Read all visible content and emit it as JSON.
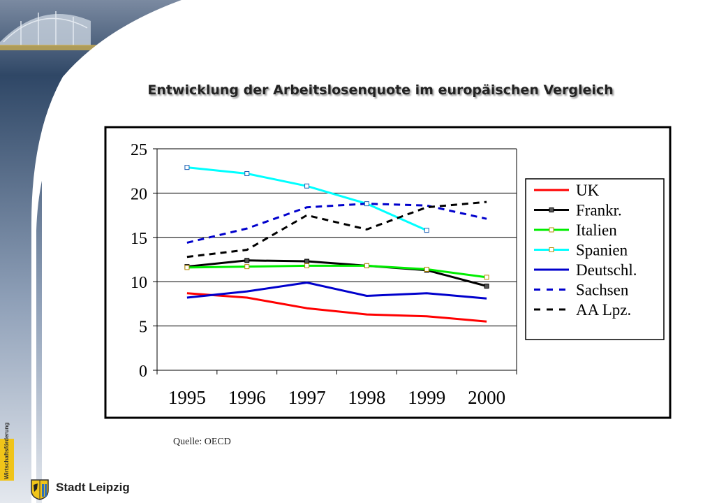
{
  "title": "Entwicklung der Arbeitslosenquote im europäischen Vergleich",
  "source_note": "Quelle: OECD",
  "branding": {
    "badge_text": "Wirtschaftsförderung",
    "city_name": "Stadt Leipzig"
  },
  "chart_data": {
    "type": "line",
    "x": [
      "1995",
      "1996",
      "1997",
      "1998",
      "1999",
      "2000"
    ],
    "ylim": [
      0,
      25
    ],
    "y_ticks": [
      "0",
      "5",
      "10",
      "15",
      "20",
      "25"
    ],
    "grid": true,
    "legend_position": "right",
    "series": [
      {
        "name": "UK",
        "values": [
          8.7,
          8.2,
          7.0,
          6.3,
          6.1,
          5.5
        ],
        "color": "#ff0000",
        "dash": "solid",
        "marker": "none"
      },
      {
        "name": "Frankr.",
        "values": [
          11.7,
          12.4,
          12.3,
          11.8,
          11.3,
          9.5
        ],
        "color": "#000000",
        "dash": "solid",
        "marker": "square"
      },
      {
        "name": "Italien",
        "values": [
          11.6,
          11.7,
          11.8,
          11.8,
          11.4,
          10.5
        ],
        "color": "#00ee00",
        "dash": "solid",
        "marker": "square"
      },
      {
        "name": "Spanien",
        "values": [
          22.9,
          22.2,
          20.8,
          18.8,
          15.8,
          null
        ],
        "color": "#00ffff",
        "dash": "solid",
        "marker": "square"
      },
      {
        "name": "Deutschl.",
        "values": [
          8.2,
          8.9,
          9.9,
          8.4,
          8.7,
          8.1
        ],
        "color": "#0000cc",
        "dash": "solid",
        "marker": "none"
      },
      {
        "name": "Sachsen",
        "values": [
          14.4,
          16.0,
          18.4,
          18.8,
          18.6,
          17.1
        ],
        "color": "#0000cc",
        "dash": "dashed",
        "marker": "none"
      },
      {
        "name": "AA Lpz.",
        "values": [
          12.8,
          13.6,
          17.5,
          15.9,
          18.4,
          19.0
        ],
        "color": "#000000",
        "dash": "dashed",
        "marker": "none"
      }
    ]
  }
}
